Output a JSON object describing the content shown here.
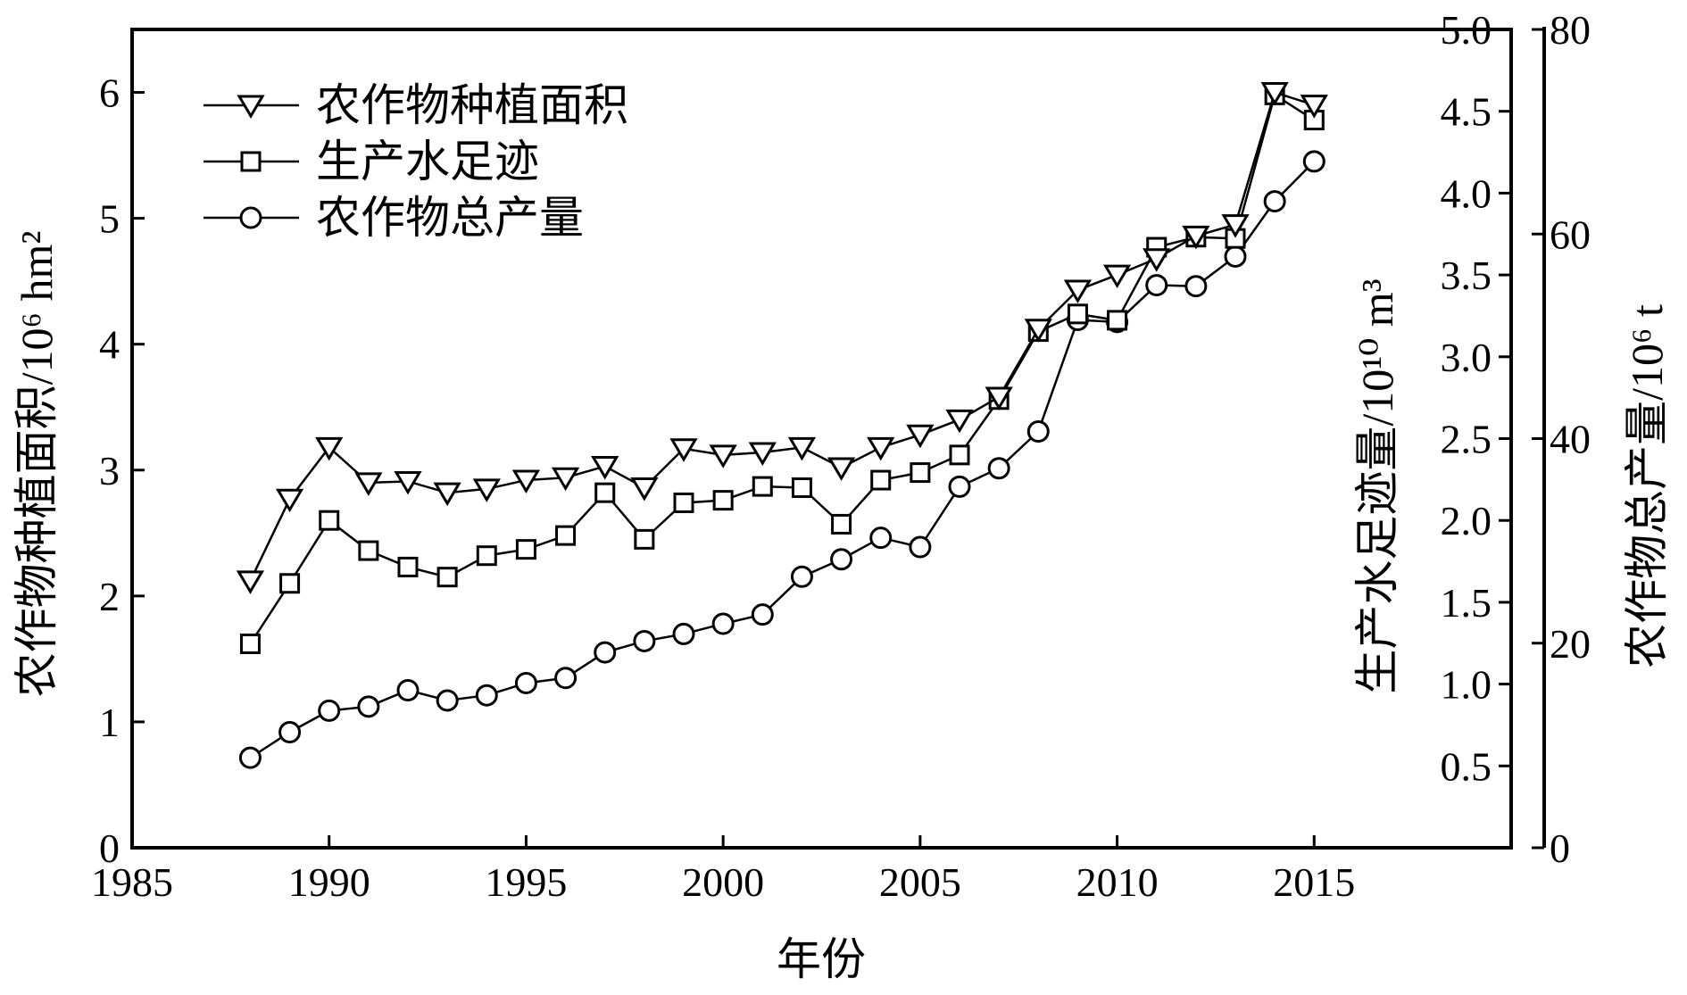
{
  "chart_data": {
    "type": "line",
    "xlabel": "年份",
    "x_ticks": [
      "1985",
      "1990",
      "1995",
      "2000",
      "2005",
      "2010",
      "2015"
    ],
    "xlim": [
      1985,
      2020
    ],
    "axes": {
      "left": {
        "label": "农作物种植面积/10⁶ hm²",
        "ylim": [
          0,
          6.5
        ],
        "ticks": [
          "0",
          "1",
          "2",
          "3",
          "4",
          "5",
          "6"
        ]
      },
      "right_inner": {
        "label": "生产水足迹量/10¹⁰ m³",
        "ylim": [
          0,
          5.0
        ],
        "ticks": [
          "0.5",
          "1.0",
          "1.5",
          "2.0",
          "2.5",
          "3.0",
          "3.5",
          "4.0",
          "4.5",
          "5.0"
        ]
      },
      "right_outer": {
        "label": "农作物总产量/10⁶ t",
        "ylim": [
          0,
          80
        ],
        "ticks": [
          "0",
          "20",
          "40",
          "60",
          "80"
        ]
      }
    },
    "x": [
      1988,
      1989,
      1990,
      1991,
      1992,
      1993,
      1994,
      1995,
      1996,
      1997,
      1998,
      1999,
      2000,
      2001,
      2002,
      2003,
      2004,
      2005,
      2006,
      2007,
      2008,
      2009,
      2010,
      2011,
      2012,
      2013,
      2014,
      2015
    ],
    "series": [
      {
        "name": "农作物种植面积",
        "marker": "triangle-down",
        "axis": "left",
        "values": [
          2.12,
          2.77,
          3.18,
          2.9,
          2.91,
          2.82,
          2.85,
          2.92,
          2.94,
          3.03,
          2.86,
          3.17,
          3.12,
          3.14,
          3.18,
          3.02,
          3.18,
          3.28,
          3.4,
          3.58,
          4.12,
          4.43,
          4.55,
          4.68,
          4.86,
          4.95,
          6.0,
          5.9
        ]
      },
      {
        "name": "生产水足迹",
        "marker": "square",
        "axis": "left",
        "values": [
          1.62,
          2.1,
          2.6,
          2.36,
          2.23,
          2.15,
          2.32,
          2.37,
          2.48,
          2.82,
          2.45,
          2.74,
          2.76,
          2.87,
          2.86,
          2.57,
          2.92,
          2.98,
          3.12,
          3.56,
          4.1,
          4.24,
          4.19,
          4.77,
          4.85,
          4.84,
          5.98,
          5.78
        ]
      },
      {
        "name": "农作物总产量",
        "marker": "circle",
        "axis": "right_outer",
        "values": [
          8.8,
          11.3,
          13.4,
          13.8,
          15.4,
          14.4,
          14.9,
          16.1,
          16.6,
          19.1,
          20.2,
          20.9,
          21.9,
          22.8,
          26.5,
          28.2,
          30.3,
          29.4,
          35.3,
          37.1,
          40.7,
          51.6,
          51.4,
          55.0,
          54.9,
          57.8,
          63.2,
          67.1
        ]
      }
    ],
    "legend_position": "top-left"
  }
}
